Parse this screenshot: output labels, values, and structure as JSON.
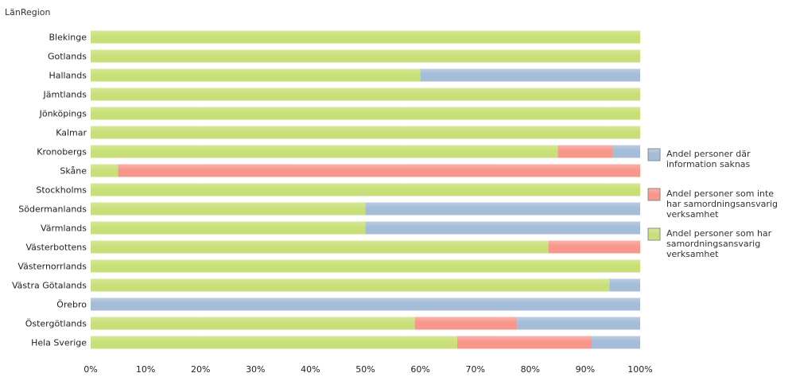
{
  "chart_data": {
    "type": "bar",
    "orientation": "horizontal",
    "stacked": true,
    "title": "",
    "dimension_label": "LänRegion",
    "xlabel": "",
    "ylabel": "LänRegion",
    "xlim": [
      0,
      100
    ],
    "x_ticks": [
      "0%",
      "10%",
      "20%",
      "30%",
      "40%",
      "50%",
      "60%",
      "70%",
      "80%",
      "90%",
      "100%"
    ],
    "grid": false,
    "legend_position": "right",
    "categories": [
      "Blekinge",
      "Gotlands",
      "Hallands",
      "Jämtlands",
      "Jönköpings",
      "Kalmar",
      "Kronobergs",
      "Skåne",
      "Stockholms",
      "Södermanlands",
      "Värmlands",
      "Västerbottens",
      "Västernorrlands",
      "Västra Götalands",
      "Örebro",
      "Östergötlands",
      "Hela Sverige"
    ],
    "series": [
      {
        "name": "Andel personer som har samordningsansvarig verksamhet",
        "legend_lines": [
          "Andel personer som har",
          "samordningsansvarig",
          "verksamhet"
        ],
        "color": "#c9e07a",
        "values": [
          100,
          100,
          60,
          100,
          100,
          100,
          85,
          5,
          100,
          50,
          50,
          83.3,
          100,
          94.4,
          0,
          59,
          66.7
        ]
      },
      {
        "name": "Andel personer som inte har samordningsansvarig verksamhet",
        "legend_lines": [
          "Andel personer som inte",
          "har samordningsansvarig",
          "verksamhet"
        ],
        "color": "#f9968b",
        "values": [
          0,
          0,
          0,
          0,
          0,
          0,
          10,
          95,
          0,
          0,
          0,
          16.7,
          0,
          0,
          0,
          18.6,
          24.4
        ]
      },
      {
        "name": "Andel personer där information saknas",
        "legend_lines": [
          "Andel personer där",
          "information saknas"
        ],
        "color": "#a4bcd8",
        "values": [
          0,
          0,
          40,
          0,
          0,
          0,
          5,
          0,
          0,
          50,
          50,
          0,
          0,
          5.6,
          100,
          22.4,
          8.9
        ]
      }
    ],
    "legend_order": [
      2,
      1,
      0
    ]
  }
}
